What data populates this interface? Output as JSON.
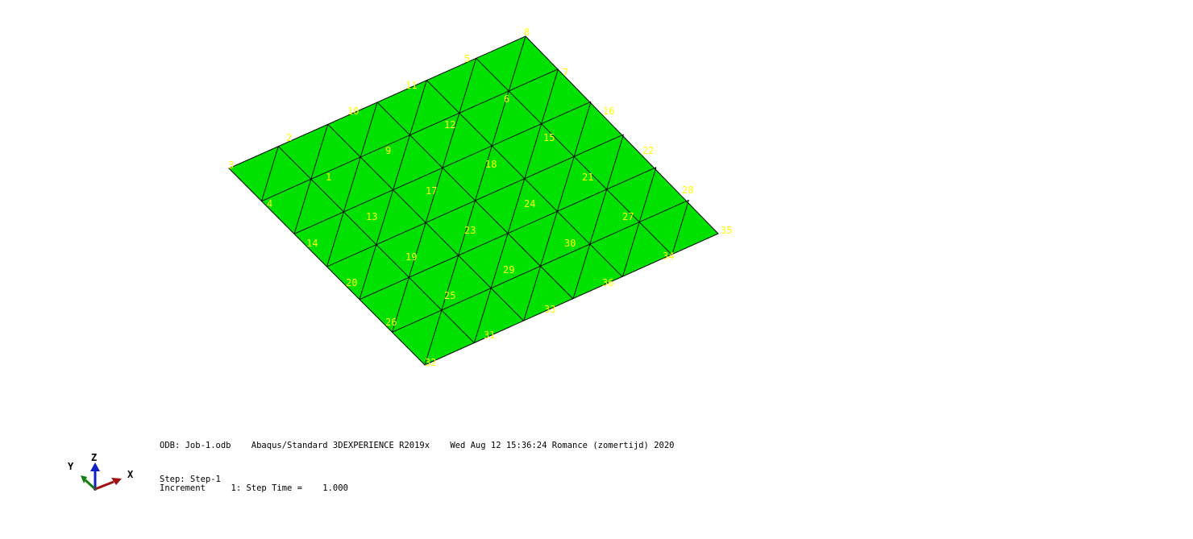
{
  "viewport": {
    "background": "#ffffff",
    "mesh_fill": "#00e100",
    "mesh_edge": "#000000",
    "label_color": "#ffff00"
  },
  "nodes": [
    {
      "id": "8",
      "label": "8"
    },
    {
      "id": "5",
      "label": "5"
    },
    {
      "id": "7",
      "label": "7"
    },
    {
      "id": "11",
      "label": "11"
    },
    {
      "id": "6",
      "label": "6"
    },
    {
      "id": "16",
      "label": "16"
    },
    {
      "id": "10",
      "label": "10"
    },
    {
      "id": "12",
      "label": "12"
    },
    {
      "id": "2",
      "label": "2"
    },
    {
      "id": "15",
      "label": "15"
    },
    {
      "id": "22",
      "label": "22"
    },
    {
      "id": "9",
      "label": "9"
    },
    {
      "id": "3",
      "label": "3"
    },
    {
      "id": "18",
      "label": "18"
    },
    {
      "id": "1",
      "label": "1"
    },
    {
      "id": "21",
      "label": "21"
    },
    {
      "id": "17",
      "label": "17"
    },
    {
      "id": "28",
      "label": "28"
    },
    {
      "id": "4",
      "label": "4"
    },
    {
      "id": "24",
      "label": "24"
    },
    {
      "id": "13",
      "label": "13"
    },
    {
      "id": "27",
      "label": "27"
    },
    {
      "id": "23",
      "label": "23"
    },
    {
      "id": "35",
      "label": "35"
    },
    {
      "id": "14",
      "label": "14"
    },
    {
      "id": "30",
      "label": "30"
    },
    {
      "id": "19",
      "label": "19"
    },
    {
      "id": "34",
      "label": "34"
    },
    {
      "id": "29",
      "label": "29"
    },
    {
      "id": "20",
      "label": "20"
    },
    {
      "id": "36",
      "label": "36"
    },
    {
      "id": "25",
      "label": "25"
    },
    {
      "id": "33",
      "label": "33"
    },
    {
      "id": "26",
      "label": "26"
    },
    {
      "id": "31",
      "label": "31"
    },
    {
      "id": "32",
      "label": "32"
    }
  ],
  "info": {
    "line1": "ODB: Job-1.odb    Abaqus/Standard 3DEXPERIENCE R2019x    Wed Aug 12 15:36:24 Romance (zomertijd) 2020",
    "line2": "Step: Step-1",
    "line3": "Increment     1: Step Time =    1.000"
  },
  "triad": {
    "x_label": "X",
    "y_label": "Y",
    "z_label": "Z",
    "x_color": "#a01010",
    "y_color": "#108010",
    "z_color": "#1020c0"
  }
}
